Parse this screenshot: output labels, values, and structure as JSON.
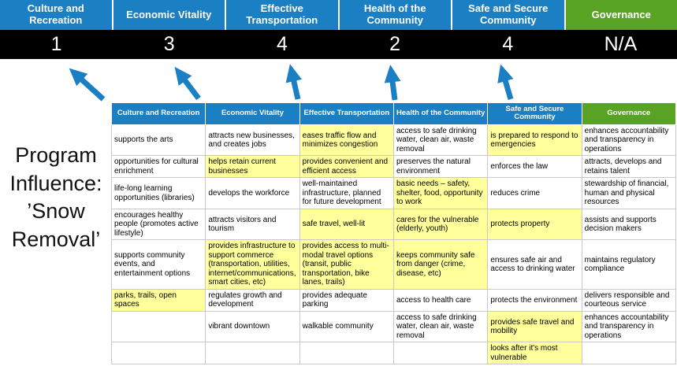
{
  "title": {
    "lines": [
      "Program",
      "Influence:",
      "’Snow",
      "Removal’"
    ]
  },
  "colors": {
    "blue": "#1b7fc4",
    "green": "#59a324",
    "yellow": "#ffff9c",
    "score_bar": "#000000",
    "arrow": "#1b7fc4"
  },
  "pillars": [
    {
      "label": "Culture and Recreation",
      "score": "1",
      "theme": "blue"
    },
    {
      "label": "Economic Vitality",
      "score": "3",
      "theme": "blue"
    },
    {
      "label": "Effective Transportation",
      "score": "4",
      "theme": "blue"
    },
    {
      "label": "Health of the Community",
      "score": "2",
      "theme": "blue"
    },
    {
      "label": "Safe and Secure Community",
      "score": "4",
      "theme": "blue"
    },
    {
      "label": "Governance",
      "score": "N/A",
      "theme": "green"
    }
  ],
  "matrix": {
    "headers": [
      {
        "label": "Culture and Recreation",
        "theme": "blue"
      },
      {
        "label": "Economic Vitality",
        "theme": "blue"
      },
      {
        "label": "Effective Transportation",
        "theme": "blue"
      },
      {
        "label": "Health of the Community",
        "theme": "blue"
      },
      {
        "label": "Safe and Secure Community",
        "theme": "blue"
      },
      {
        "label": "Governance",
        "theme": "green"
      }
    ],
    "rows": [
      [
        {
          "t": "supports the arts",
          "h": false
        },
        {
          "t": "attracts new businesses, and creates jobs",
          "h": false
        },
        {
          "t": "eases traffic flow and minimizes congestion",
          "h": true
        },
        {
          "t": "access to safe drinking water, clean air, waste removal",
          "h": false
        },
        {
          "t": "is prepared to respond to emergencies",
          "h": true
        },
        {
          "t": "enhances accountability and transparency in operations",
          "h": false
        }
      ],
      [
        {
          "t": "opportunities for cultural enrichment",
          "h": false
        },
        {
          "t": "helps retain current businesses",
          "h": true
        },
        {
          "t": "provides convenient and efficient access",
          "h": true
        },
        {
          "t": "preserves the natural environment",
          "h": false
        },
        {
          "t": "enforces the law",
          "h": false
        },
        {
          "t": "attracts, develops and retains talent",
          "h": false
        }
      ],
      [
        {
          "t": "life-long learning opportunities (libraries)",
          "h": false
        },
        {
          "t": "develops the workforce",
          "h": false
        },
        {
          "t": "well-maintained infrastructure, planned for future development",
          "h": false
        },
        {
          "t": "basic needs – safety, shelter, food, opportunity to work",
          "h": true
        },
        {
          "t": "reduces crime",
          "h": false
        },
        {
          "t": "stewardship of financial, human and physical resources",
          "h": false
        }
      ],
      [
        {
          "t": "encourages healthy people (promotes active lifestyle)",
          "h": false
        },
        {
          "t": "attracts visitors and tourism",
          "h": false
        },
        {
          "t": "safe travel, well-lit",
          "h": true
        },
        {
          "t": "cares for the vulnerable (elderly, youth)",
          "h": true
        },
        {
          "t": "protects property",
          "h": true
        },
        {
          "t": "assists and supports decision makers",
          "h": false
        }
      ],
      [
        {
          "t": "supports community events, and entertainment options",
          "h": false
        },
        {
          "t": "provides infrastructure to support commerce (transportation, utilities, internet/communications, smart cities, etc)",
          "h": true
        },
        {
          "t": "provides access to multi-modal travel options (transit, public transportation, bike lanes, trails)",
          "h": true
        },
        {
          "t": "keeps community safe from danger (crime, disease, etc)",
          "h": true
        },
        {
          "t": "ensures safe air and access to drinking water",
          "h": false
        },
        {
          "t": "maintains regulatory compliance",
          "h": false
        }
      ],
      [
        {
          "t": "parks, trails, open spaces",
          "h": true
        },
        {
          "t": "regulates growth and development",
          "h": false
        },
        {
          "t": "provides adequate parking",
          "h": false
        },
        {
          "t": "access to health care",
          "h": false
        },
        {
          "t": "protects the environment",
          "h": false
        },
        {
          "t": "delivers responsible and courteous service",
          "h": false
        }
      ],
      [
        {
          "t": "",
          "h": false
        },
        {
          "t": "vibrant downtown",
          "h": false
        },
        {
          "t": "walkable community",
          "h": false
        },
        {
          "t": "access to safe drinking water, clean air, waste removal",
          "h": false
        },
        {
          "t": "provides safe travel and mobility",
          "h": true
        },
        {
          "t": "enhances accountability and transparency in operations",
          "h": false
        }
      ],
      [
        {
          "t": "",
          "h": false
        },
        {
          "t": "",
          "h": false
        },
        {
          "t": "",
          "h": false
        },
        {
          "t": "",
          "h": false
        },
        {
          "t": "looks after it's most vulnerable",
          "h": true
        },
        {
          "t": "",
          "h": false
        }
      ]
    ]
  }
}
